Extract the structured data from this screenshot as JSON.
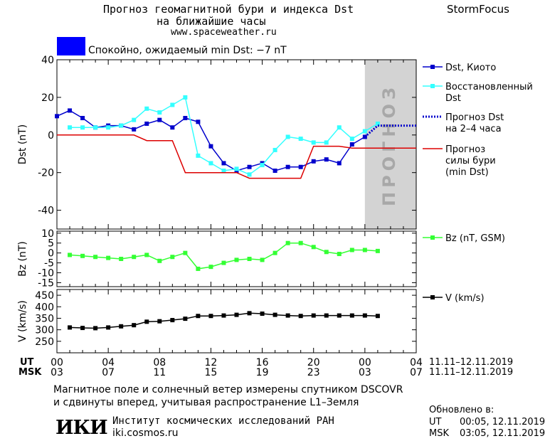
{
  "header": {
    "title_line1": "Прогноз геомагнитной бури и индекса Dst",
    "title_line2": "на ближайшие часы",
    "site": "www.spaceweather.ru",
    "brand": "StormFocus",
    "status_text": "Спокойно, ожидаемый min Dst: −7 nT",
    "status_color": "#0000ff"
  },
  "forecast_label": "ПРОГНОЗ",
  "time_axis": {
    "ut_label": "UT",
    "msk_label": "MSK",
    "ut_ticks": [
      "00",
      "04",
      "08",
      "12",
      "16",
      "20",
      "00",
      "04"
    ],
    "msk_ticks": [
      "03",
      "07",
      "11",
      "15",
      "19",
      "23",
      "03",
      "07"
    ],
    "ut_dates": "11.11–12.11.2019",
    "msk_dates": "11.11–12.11.2019"
  },
  "footer": {
    "note_line1": "Магнитное поле и солнечный ветер измерены спутником DSCOVR",
    "note_line2": "и сдвинуты вперед, учитывая распространение L1–Земля",
    "logo": "ИКИ",
    "institute": "Институт космических исследований РАН",
    "institute_url": "iki.cosmos.ru",
    "updated_label": "Обновлено в:",
    "updated_ut_label": "UT",
    "updated_ut": "00:05, 12.11.2019",
    "updated_msk_label": "MSK",
    "updated_msk": "03:05, 12.11.2019"
  },
  "chart_data": [
    {
      "type": "line",
      "ylabel": "Dst (nT)",
      "ylim": [
        -50,
        40
      ],
      "yticks": [
        40,
        20,
        0,
        -20,
        -40
      ],
      "x_unit": "hours since 00 UT 11.11.2019",
      "xlim": [
        0,
        28
      ],
      "series": [
        {
          "name": "Dst, Киото",
          "color": "#0000cc",
          "marker": "square",
          "x": [
            0,
            1,
            2,
            3,
            4,
            5,
            6,
            7,
            8,
            9,
            10,
            11,
            12,
            13,
            14,
            15,
            16,
            17,
            18,
            19,
            20,
            21,
            22,
            23,
            24
          ],
          "y": [
            10,
            13,
            9,
            4,
            5,
            5,
            3,
            6,
            8,
            4,
            9,
            7,
            -6,
            -15,
            -19,
            -17,
            -15,
            -19,
            -17,
            -17,
            -14,
            -13,
            -15,
            -5,
            -1
          ]
        },
        {
          "name": "Восстановленный Dst",
          "color": "#33ffff",
          "marker": "square",
          "x": [
            1,
            2,
            3,
            4,
            5,
            6,
            7,
            8,
            9,
            10,
            11,
            12,
            13,
            14,
            15,
            16,
            17,
            18,
            19,
            20,
            21,
            22,
            23,
            24,
            25
          ],
          "y": [
            4,
            4,
            4,
            4,
            5,
            8,
            14,
            12,
            16,
            20,
            -11,
            -15,
            -19,
            -18,
            -21,
            -16,
            -8,
            -1,
            -2,
            -4,
            -4,
            4,
            -2,
            2,
            6
          ]
        },
        {
          "name": "Прогноз Dst на 2–4 часа",
          "color": "#0000cc",
          "style": "dotted",
          "x": [
            24,
            25,
            26,
            27,
            28
          ],
          "y": [
            -1,
            5,
            5,
            5,
            5
          ]
        },
        {
          "name": "Прогноз силы бури (min Dst)",
          "color": "#dd0000",
          "style": "step",
          "x": [
            0,
            6,
            7,
            9,
            10,
            14,
            15,
            19,
            20,
            22,
            23,
            28
          ],
          "y": [
            0,
            0,
            -3,
            -3,
            -20,
            -20,
            -23,
            -23,
            -6,
            -6,
            -7,
            -7
          ]
        }
      ]
    },
    {
      "type": "line",
      "ylabel": "Bz (nT)",
      "ylim": [
        -17,
        11
      ],
      "yticks": [
        10,
        5,
        0,
        -5,
        -10,
        -15
      ],
      "series": [
        {
          "name": "Bz (nT, GSM)",
          "color": "#33ff33",
          "marker": "square",
          "x": [
            1,
            2,
            3,
            4,
            5,
            6,
            7,
            8,
            9,
            10,
            11,
            12,
            13,
            14,
            15,
            16,
            17,
            18,
            19,
            20,
            21,
            22,
            23,
            24,
            25
          ],
          "y": [
            -1,
            -1.5,
            -2,
            -2.5,
            -3,
            -2,
            -1,
            -4,
            -2,
            0,
            -8,
            -7,
            -5,
            -3.5,
            -3,
            -3.5,
            0,
            5,
            5,
            3,
            0.5,
            -0.5,
            1.5,
            1.5,
            1
          ]
        }
      ]
    },
    {
      "type": "line",
      "ylabel": "V (km/s)",
      "ylim": [
        200,
        475
      ],
      "yticks": [
        450,
        400,
        350,
        300,
        250
      ],
      "series": [
        {
          "name": "V (km/s)",
          "color": "#000000",
          "marker": "square",
          "x": [
            1,
            2,
            3,
            4,
            5,
            6,
            7,
            8,
            9,
            10,
            11,
            12,
            13,
            14,
            15,
            16,
            17,
            18,
            19,
            20,
            21,
            22,
            23,
            24,
            25
          ],
          "y": [
            310,
            308,
            307,
            310,
            315,
            320,
            335,
            337,
            342,
            348,
            360,
            360,
            362,
            365,
            372,
            370,
            365,
            362,
            360,
            362,
            362,
            362,
            362,
            362,
            360
          ]
        }
      ]
    }
  ]
}
